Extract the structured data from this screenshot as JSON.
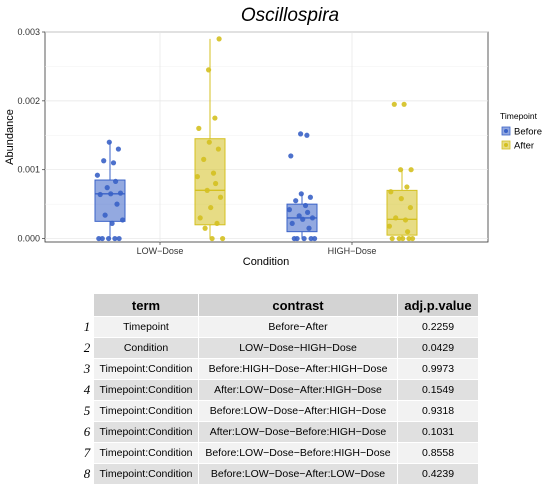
{
  "chart_data": {
    "type": "box",
    "title": "Oscillospira",
    "xlabel": "Condition",
    "ylabel": "Abundance",
    "ylim": [
      -5e-05,
      0.003
    ],
    "yticks": [
      "0.000",
      "0.001",
      "0.002",
      "0.003"
    ],
    "ytick_values": [
      0,
      0.001,
      0.002,
      0.003
    ],
    "categories": [
      "LOW−Dose",
      "HIGH−Dose"
    ],
    "grid": true,
    "legend": {
      "title": "Timepoint",
      "position": "right"
    },
    "series": [
      {
        "name": "Before",
        "color": "#3a62c7",
        "boxes": [
          {
            "category": "LOW−Dose",
            "min": 0.0,
            "q1": 0.00025,
            "median": 0.00065,
            "q3": 0.00085,
            "max": 0.0014,
            "points": [
              0.0,
              0.0,
              0.0,
              0.0,
              0.0,
              0.00022,
              0.00027,
              0.00034,
              0.0005,
              0.00064,
              0.00065,
              0.00066,
              0.00074,
              0.00083,
              0.00092,
              0.0011,
              0.00113,
              0.0013,
              0.0014
            ]
          },
          {
            "category": "HIGH−Dose",
            "min": 0.0,
            "q1": 0.0001,
            "median": 0.0003,
            "q3": 0.0005,
            "max": 0.00065,
            "points": [
              0.0,
              0.0,
              0.0,
              0.0,
              0.0,
              0.00015,
              0.00022,
              0.00028,
              0.0003,
              0.00033,
              0.00038,
              0.00042,
              0.00048,
              0.00055,
              0.0006,
              0.00065,
              0.0012,
              0.0015,
              0.00152
            ]
          }
        ]
      },
      {
        "name": "After",
        "color": "#d4c020",
        "boxes": [
          {
            "category": "LOW−Dose",
            "min": 0.0,
            "q1": 0.0002,
            "median": 0.0007,
            "q3": 0.00145,
            "max": 0.0029,
            "points": [
              0.0,
              0.0,
              0.00015,
              0.00022,
              0.0003,
              0.00045,
              0.0006,
              0.0007,
              0.0008,
              0.0009,
              0.00095,
              0.00115,
              0.0013,
              0.0014,
              0.0016,
              0.00175,
              0.00245,
              0.0029
            ]
          },
          {
            "category": "HIGH−Dose",
            "min": 0.0,
            "q1": 5e-05,
            "median": 0.00028,
            "q3": 0.0007,
            "max": 0.001,
            "points": [
              0.0,
              0.0,
              0.0,
              0.0,
              0.0,
              0.0001,
              0.00018,
              0.00027,
              0.0003,
              0.00045,
              0.00058,
              0.00068,
              0.00075,
              0.001,
              0.001,
              0.00195,
              0.00195
            ]
          }
        ]
      }
    ]
  },
  "table": {
    "headers": {
      "term": "term",
      "contrast": "contrast",
      "p": "adj.p.value"
    },
    "rows": [
      {
        "n": "1",
        "term": "Timepoint",
        "contrast": "Before−After",
        "p": "0.2259"
      },
      {
        "n": "2",
        "term": "Condition",
        "contrast": "LOW−Dose−HIGH−Dose",
        "p": "0.0429"
      },
      {
        "n": "3",
        "term": "Timepoint:Condition",
        "contrast": "Before:HIGH−Dose−After:HIGH−Dose",
        "p": "0.9973"
      },
      {
        "n": "4",
        "term": "Timepoint:Condition",
        "contrast": "After:LOW−Dose−After:HIGH−Dose",
        "p": "0.1549"
      },
      {
        "n": "5",
        "term": "Timepoint:Condition",
        "contrast": "Before:LOW−Dose−After:HIGH−Dose",
        "p": "0.9318"
      },
      {
        "n": "6",
        "term": "Timepoint:Condition",
        "contrast": "After:LOW−Dose−Before:HIGH−Dose",
        "p": "0.1031"
      },
      {
        "n": "7",
        "term": "Timepoint:Condition",
        "contrast": "Before:LOW−Dose−Before:HIGH−Dose",
        "p": "0.8558"
      },
      {
        "n": "8",
        "term": "Timepoint:Condition",
        "contrast": "Before:LOW−Dose−After:LOW−Dose",
        "p": "0.4239"
      }
    ]
  }
}
